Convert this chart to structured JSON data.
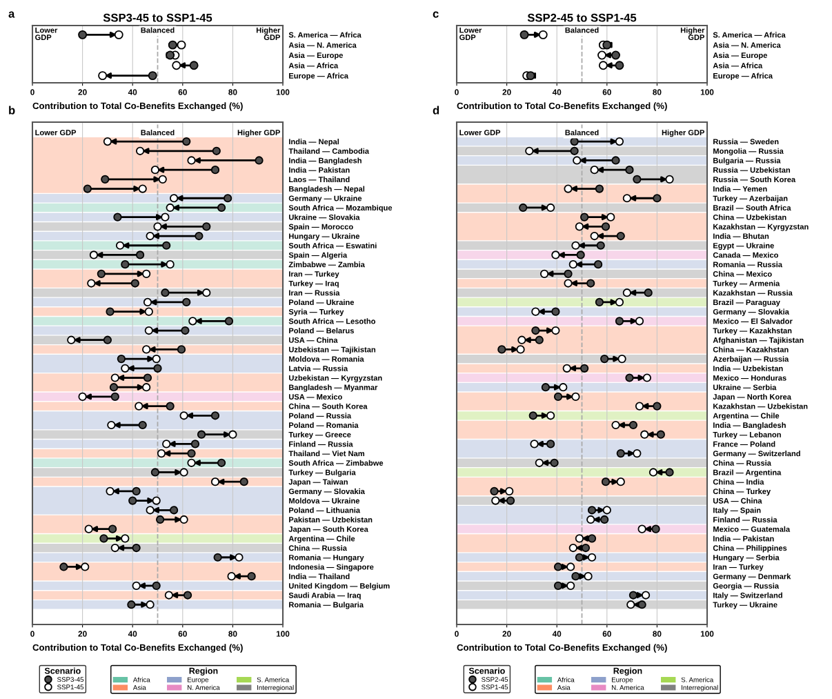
{
  "chart_data": [
    {
      "type": "scatter",
      "orientation": "horizontal",
      "title": "SSP3-45 to SSP1-45",
      "xlabel": "Contribution to Total Co-Benefits Exchanged (%)",
      "categories": [
        "S. America — Africa",
        "Asia — N. America",
        "Asia — Europe",
        "Asia — Africa",
        "Europe — Africa"
      ],
      "series": [
        {
          "color": "#4d4d4d",
          "values": [
            20,
            56,
            55,
            64.5,
            48
          ]
        },
        {
          "color": "#ffffff",
          "values": [
            34.5,
            59.5,
            57,
            57.5,
            28
          ]
        }
      ],
      "xlim": [
        0,
        100
      ],
      "xticks": [
        0,
        20,
        40,
        60,
        80,
        100
      ],
      "grid": "x",
      "marker": "circle",
      "ref_lines": [
        {
          "axis": "x",
          "value": 50,
          "label": "Balanced",
          "color": "#aaaaaa",
          "line_style": "dashed"
        }
      ],
      "annotations": [
        "a",
        "Lower\nGDP",
        "Higher\nGDP"
      ]
    },
    {
      "type": "scatter",
      "orientation": "horizontal",
      "xlabel": "Contribution to Total Co-Benefits Exchanged (%)",
      "legend_title": "Scenario",
      "legend": "bottom",
      "categories": [
        "India — Nepal",
        "Thailand — Cambodia",
        "India — Bangladesh",
        "India — Pakistan",
        "Laos — Thailand",
        "Bangladesh — Nepal",
        "Germany — Ukraine",
        "South Africa — Mozambique",
        "Ukraine — Slovakia",
        "Spain — Morocco",
        "Hungary — Ukraine",
        "South Africa — Eswatini",
        "Spain — Algeria",
        "Zimbabwe — Zambia",
        "Iran — Turkey",
        "Turkey — Iraq",
        "Iran — Russia",
        "Poland — Ukraine",
        "Syria — Turkey",
        "South Africa — Lesotho",
        "Poland — Belarus",
        "USA — China",
        "Uzbekistan — Tajikistan",
        "Moldova — Romania",
        "Latvia — Russia",
        "Uzbekistan — Kyrgyzstan",
        "Bangladesh — Myanmar",
        "USA — Mexico",
        "China — South Korea",
        "Poland — Russia",
        "Poland — Romania",
        "Turkey — Greece",
        "Finland — Russia",
        "Thailand — Viet Nam",
        "South Africa — Zimbabwe",
        "Turkey — Bulgaria",
        "Japan — Taiwan",
        "Germany — Slovakia",
        "Moldova — Ukraine",
        "Poland — Lithuania",
        "Pakistan — Uzbekistan",
        "Japan — South Korea",
        "Argentina — Chile",
        "China — Russia",
        "Romania — Hungary",
        "Indonesia — Singapore",
        "India — Thailand",
        "United Kingdom — Belgium",
        "Saudi Arabia — Iraq",
        "Romania — Bulgaria"
      ],
      "series": [
        {
          "name": "SSP3-45",
          "color": "#4d4d4d",
          "values": [
            61.5,
            73.5,
            90.5,
            73,
            29,
            22,
            78,
            75.5,
            34,
            69.5,
            66.5,
            53.5,
            43,
            37,
            27.5,
            41,
            53,
            61.5,
            31,
            78.5,
            61,
            30,
            59.5,
            35.5,
            50,
            46,
            32.5,
            33,
            55,
            73,
            44,
            67.5,
            65,
            63.5,
            75.5,
            49,
            84.5,
            41.5,
            40,
            56.5,
            51,
            32,
            28.5,
            41.5,
            74,
            12.5,
            87.5,
            49.5,
            62,
            39.5
          ]
        },
        {
          "name": "SSP1-45",
          "color": "#ffffff",
          "values": [
            30,
            43,
            63.5,
            49,
            52,
            44,
            56.5,
            55,
            53,
            50,
            47,
            35,
            24.5,
            55,
            45.5,
            23.5,
            69.5,
            46,
            46.5,
            64,
            46.5,
            15.5,
            45.5,
            49.5,
            37,
            33,
            45.5,
            20,
            42.5,
            60.5,
            31.5,
            80,
            53.5,
            51.5,
            63.5,
            60.5,
            73,
            31,
            49.5,
            47,
            60.5,
            22.5,
            37,
            33,
            82.5,
            21,
            79.5,
            41.5,
            54.5,
            47
          ]
        }
      ],
      "xlim": [
        0,
        100
      ],
      "xticks": [
        0,
        20,
        40,
        60,
        80,
        100
      ],
      "grid": "x",
      "marker": "circle",
      "ref_lines": [
        {
          "axis": "x",
          "value": 50,
          "label": "Balanced",
          "color": "#aaaaaa",
          "line_style": "dashed"
        }
      ],
      "bands": [
        {
          "axis": "y",
          "from": "South Africa — Mozambique",
          "to": "South Africa — Mozambique",
          "label": "Africa",
          "color": "#66c2a5"
        },
        {
          "axis": "y",
          "from": "South Africa — Eswatini",
          "to": "South Africa — Eswatini",
          "color": "#66c2a5"
        },
        {
          "axis": "y",
          "from": "Zimbabwe — Zambia",
          "to": "Zimbabwe — Zambia",
          "color": "#66c2a5"
        },
        {
          "axis": "y",
          "from": "South Africa — Lesotho",
          "to": "South Africa — Lesotho",
          "color": "#66c2a5"
        },
        {
          "axis": "y",
          "from": "South Africa — Zimbabwe",
          "to": "South Africa — Zimbabwe",
          "color": "#66c2a5"
        },
        {
          "axis": "y",
          "from": "India — Nepal",
          "to": "Bangladesh — Nepal",
          "label": "Asia",
          "color": "#fc8d62"
        },
        {
          "axis": "y",
          "from": "Iran — Turkey",
          "to": "Turkey — Iraq",
          "color": "#fc8d62"
        },
        {
          "axis": "y",
          "from": "Syria — Turkey",
          "to": "Syria — Turkey",
          "color": "#fc8d62"
        },
        {
          "axis": "y",
          "from": "Uzbekistan — Tajikistan",
          "to": "Uzbekistan — Tajikistan",
          "color": "#fc8d62"
        },
        {
          "axis": "y",
          "from": "Uzbekistan — Kyrgyzstan",
          "to": "Bangladesh — Myanmar",
          "color": "#fc8d62"
        },
        {
          "axis": "y",
          "from": "China — South Korea",
          "to": "China — South Korea",
          "color": "#fc8d62"
        },
        {
          "axis": "y",
          "from": "Thailand — Viet Nam",
          "to": "Thailand — Viet Nam",
          "color": "#fc8d62"
        },
        {
          "axis": "y",
          "from": "Japan — Taiwan",
          "to": "Japan — Taiwan",
          "color": "#fc8d62"
        },
        {
          "axis": "y",
          "from": "Pakistan — Uzbekistan",
          "to": "Japan — South Korea",
          "color": "#fc8d62"
        },
        {
          "axis": "y",
          "from": "Indonesia — Singapore",
          "to": "India — Thailand",
          "color": "#fc8d62"
        },
        {
          "axis": "y",
          "from": "Saudi Arabia — Iraq",
          "to": "Saudi Arabia — Iraq",
          "color": "#fc8d62"
        },
        {
          "axis": "y",
          "from": "Germany — Ukraine",
          "to": "Germany — Ukraine",
          "label": "Europe",
          "color": "#8da0cb"
        },
        {
          "axis": "y",
          "from": "Ukraine — Slovakia",
          "to": "Ukraine — Slovakia",
          "color": "#8da0cb"
        },
        {
          "axis": "y",
          "from": "Hungary — Ukraine",
          "to": "Hungary — Ukraine",
          "color": "#8da0cb"
        },
        {
          "axis": "y",
          "from": "Poland — Ukraine",
          "to": "Poland — Ukraine",
          "color": "#8da0cb"
        },
        {
          "axis": "y",
          "from": "Poland — Belarus",
          "to": "Poland — Belarus",
          "color": "#8da0cb"
        },
        {
          "axis": "y",
          "from": "Moldova — Romania",
          "to": "Latvia — Russia",
          "color": "#8da0cb"
        },
        {
          "axis": "y",
          "from": "Poland — Russia",
          "to": "Poland — Romania",
          "color": "#8da0cb"
        },
        {
          "axis": "y",
          "from": "Finland — Russia",
          "to": "Finland — Russia",
          "color": "#8da0cb"
        },
        {
          "axis": "y",
          "from": "Germany — Slovakia",
          "to": "Poland — Lithuania",
          "color": "#8da0cb"
        },
        {
          "axis": "y",
          "from": "Romania — Hungary",
          "to": "Romania — Hungary",
          "color": "#8da0cb"
        },
        {
          "axis": "y",
          "from": "United Kingdom — Belgium",
          "to": "United Kingdom — Belgium",
          "color": "#8da0cb"
        },
        {
          "axis": "y",
          "from": "Romania — Bulgaria",
          "to": "Romania — Bulgaria",
          "color": "#8da0cb"
        },
        {
          "axis": "y",
          "from": "USA — Mexico",
          "to": "USA — Mexico",
          "label": "N. America",
          "color": "#e78ac3"
        },
        {
          "axis": "y",
          "from": "Argentina — Chile",
          "to": "Argentina — Chile",
          "label": "S. America",
          "color": "#a6d854"
        },
        {
          "axis": "y",
          "from": "Spain — Morocco",
          "to": "Spain — Morocco",
          "label": "Interregional",
          "color": "#808080"
        },
        {
          "axis": "y",
          "from": "Spain — Algeria",
          "to": "Spain — Algeria",
          "color": "#808080"
        },
        {
          "axis": "y",
          "from": "Iran — Russia",
          "to": "Iran — Russia",
          "color": "#808080"
        },
        {
          "axis": "y",
          "from": "USA — China",
          "to": "USA — China",
          "color": "#808080"
        },
        {
          "axis": "y",
          "from": "Turkey — Greece",
          "to": "Turkey — Greece",
          "color": "#808080"
        },
        {
          "axis": "y",
          "from": "Turkey — Bulgaria",
          "to": "Turkey — Bulgaria",
          "color": "#808080"
        },
        {
          "axis": "y",
          "from": "China — Russia",
          "to": "China — Russia",
          "color": "#808080"
        }
      ],
      "annotations": [
        "b",
        "Lower GDP",
        "Higher GDP",
        "Region"
      ]
    },
    {
      "type": "scatter",
      "orientation": "horizontal",
      "title": "SSP2-45 to SSP1-45",
      "xlabel": "Contribution to Total Co-Benefits Exchanged (%)",
      "categories": [
        "S. America — Africa",
        "Asia — N. America",
        "Asia — Europe",
        "Asia — Africa",
        "Europe — Africa"
      ],
      "series": [
        {
          "color": "#4d4d4d",
          "values": [
            27,
            60,
            63.5,
            65,
            29.5
          ]
        },
        {
          "color": "#ffffff",
          "values": [
            34.5,
            58.5,
            58,
            58.5,
            28
          ]
        }
      ],
      "xlim": [
        0,
        100
      ],
      "xticks": [
        0,
        20,
        40,
        60,
        80,
        100
      ],
      "grid": "x",
      "marker": "circle",
      "ref_lines": [
        {
          "axis": "x",
          "value": 50,
          "label": "Balanced",
          "color": "#aaaaaa",
          "line_style": "dashed"
        }
      ],
      "annotations": [
        "c",
        "Lower\nGDP",
        "Higher\nGDP"
      ]
    },
    {
      "type": "scatter",
      "orientation": "horizontal",
      "xlabel": "Contribution to Total Co-Benefits Exchanged (%)",
      "legend_title": "Scenario",
      "legend": "bottom",
      "categories": [
        "Russia — Sweden",
        "Mongolia — Russia",
        "Bulgaria — Russia",
        "Russia — Uzbekistan",
        "Russia — South Korea",
        "India — Yemen",
        "Turkey — Azerbaijan",
        "Brazil — South Africa",
        "China — Uzbekistan",
        "Kazakhstan — Kyrgyzstan",
        "India — Bhutan",
        "Egypt — Ukraine",
        "Canada — Mexico",
        "Romania — Russia",
        "China — Mexico",
        "Turkey — Armenia",
        "Kazakhstan — Russia",
        "Brazil — Paraguay",
        "Germany — Slovakia",
        "Mexico — El Salvador",
        "Turkey — Kazakhstan",
        "Afghanistan — Tajikistan",
        "China — Kazakhstan",
        "Azerbaijan — Russia",
        "India — Uzbekistan",
        "Mexico — Honduras",
        "Ukraine — Serbia",
        "Japan — North Korea",
        "Kazakhstan — Uzbekistan",
        "Argentina — Chile",
        "India — Bangladesh",
        "Turkey — Lebanon",
        "France — Poland",
        "Germany — Switzerland",
        "China — Russia",
        "Brazil — Argentina",
        "China — India",
        "China — Turkey",
        "USA — China",
        "Italy — Spain",
        "Finland — Russia",
        "Mexico — Guatemala",
        "India — Pakistan",
        "China — Philippines",
        "Hungary — Serbia",
        "Iran — Turkey",
        "Germany — Denmark",
        "Georgia — Russia",
        "Italy — Switzerland",
        "Turkey — Ukraine"
      ],
      "series": [
        {
          "name": "SSP2-45",
          "color": "#4d4d4d",
          "values": [
            47,
            47,
            63.5,
            69,
            72,
            57,
            80,
            26.5,
            51,
            59.5,
            65.5,
            57.5,
            49.5,
            56.5,
            44.5,
            53.5,
            76.5,
            57,
            39.5,
            65,
            31.5,
            33,
            18,
            59,
            51,
            69,
            35.5,
            40.5,
            80,
            30.5,
            70.5,
            81.5,
            37.5,
            65.5,
            39,
            85,
            59.5,
            15,
            21.5,
            54,
            59,
            79.5,
            54,
            51.5,
            49,
            40.5,
            47.5,
            40.5,
            70.5,
            74
          ]
        },
        {
          "name": "SSP1-45",
          "color": "#ffffff",
          "values": [
            65,
            29,
            48,
            55,
            85,
            44.5,
            68,
            37.5,
            61.5,
            49,
            55,
            47.5,
            39.5,
            46.5,
            35,
            44.5,
            68,
            65,
            31.5,
            73,
            39.5,
            26,
            25.5,
            66,
            44,
            76,
            42.5,
            47.5,
            73,
            37.5,
            63.5,
            75,
            31,
            72,
            33,
            78.5,
            65.5,
            21,
            15.5,
            60,
            53.5,
            74,
            49,
            46.5,
            54,
            45.5,
            52.5,
            45.5,
            75.5,
            69.5
          ]
        },
        {
          "name": "Africa",
          "type": "bar",
          "color": "#66c2a5",
          "values": [
            null,
            null,
            null,
            null,
            null,
            null,
            null,
            null,
            null,
            null,
            null,
            null,
            null,
            null,
            null,
            null,
            null,
            null,
            null,
            null,
            null,
            null,
            null,
            null,
            null,
            null,
            null,
            null,
            null,
            null,
            null,
            null,
            null,
            null,
            null,
            null,
            null,
            null,
            null,
            null,
            null,
            null,
            null,
            null,
            null,
            null,
            null,
            null,
            null,
            null
          ]
        }
      ],
      "xlim": [
        0,
        100
      ],
      "xticks": [
        0,
        20,
        40,
        60,
        80,
        100
      ],
      "grid": "x",
      "marker": "circle",
      "ref_lines": [
        {
          "axis": "x",
          "value": 50,
          "label": "Balanced",
          "color": "#aaaaaa",
          "line_style": "dashed"
        }
      ],
      "bands": [
        {
          "axis": "y",
          "from": "India — Yemen",
          "to": "Turkey — Azerbaijan",
          "label": "Asia",
          "color": "#fc8d62"
        },
        {
          "axis": "y",
          "from": "China — Uzbekistan",
          "to": "India — Bhutan",
          "color": "#fc8d62"
        },
        {
          "axis": "y",
          "from": "Turkey — Armenia",
          "to": "Turkey — Armenia",
          "color": "#fc8d62"
        },
        {
          "axis": "y",
          "from": "Turkey — Kazakhstan",
          "to": "China — Kazakhstan",
          "color": "#fc8d62"
        },
        {
          "axis": "y",
          "from": "India — Uzbekistan",
          "to": "India — Uzbekistan",
          "color": "#fc8d62"
        },
        {
          "axis": "y",
          "from": "Japan — North Korea",
          "to": "Kazakhstan — Uzbekistan",
          "color": "#fc8d62"
        },
        {
          "axis": "y",
          "from": "India — Bangladesh",
          "to": "Turkey — Lebanon",
          "color": "#fc8d62"
        },
        {
          "axis": "y",
          "from": "China — India",
          "to": "China — Turkey",
          "color": "#fc8d62"
        },
        {
          "axis": "y",
          "from": "India — Pakistan",
          "to": "China — Philippines",
          "color": "#fc8d62"
        },
        {
          "axis": "y",
          "from": "Iran — Turkey",
          "to": "Iran — Turkey",
          "color": "#fc8d62"
        },
        {
          "axis": "y",
          "from": "Russia — Sweden",
          "to": "Russia — Sweden",
          "label": "Europe",
          "color": "#8da0cb"
        },
        {
          "axis": "y",
          "from": "Bulgaria — Russia",
          "to": "Bulgaria — Russia",
          "color": "#8da0cb"
        },
        {
          "axis": "y",
          "from": "Romania — Russia",
          "to": "Romania — Russia",
          "color": "#8da0cb"
        },
        {
          "axis": "y",
          "from": "Germany — Slovakia",
          "to": "Germany — Slovakia",
          "color": "#8da0cb"
        },
        {
          "axis": "y",
          "from": "Ukraine — Serbia",
          "to": "Ukraine — Serbia",
          "color": "#8da0cb"
        },
        {
          "axis": "y",
          "from": "France — Poland",
          "to": "Germany — Switzerland",
          "color": "#8da0cb"
        },
        {
          "axis": "y",
          "from": "Italy — Spain",
          "to": "Finland — Russia",
          "color": "#8da0cb"
        },
        {
          "axis": "y",
          "from": "Hungary — Serbia",
          "to": "Hungary — Serbia",
          "color": "#8da0cb"
        },
        {
          "axis": "y",
          "from": "Germany — Denmark",
          "to": "Germany — Denmark",
          "color": "#8da0cb"
        },
        {
          "axis": "y",
          "from": "Italy — Switzerland",
          "to": "Italy — Switzerland",
          "color": "#8da0cb"
        },
        {
          "axis": "y",
          "from": "Canada — Mexico",
          "to": "Canada — Mexico",
          "label": "N. America",
          "color": "#e78ac3"
        },
        {
          "axis": "y",
          "from": "Mexico — El Salvador",
          "to": "Mexico — El Salvador",
          "color": "#e78ac3"
        },
        {
          "axis": "y",
          "from": "Mexico — Honduras",
          "to": "Mexico — Honduras",
          "color": "#e78ac3"
        },
        {
          "axis": "y",
          "from": "Mexico — Guatemala",
          "to": "Mexico — Guatemala",
          "color": "#e78ac3"
        },
        {
          "axis": "y",
          "from": "Brazil — Paraguay",
          "to": "Brazil — Paraguay",
          "label": "S. America",
          "color": "#a6d854"
        },
        {
          "axis": "y",
          "from": "Argentina — Chile",
          "to": "Argentina — Chile",
          "color": "#a6d854"
        },
        {
          "axis": "y",
          "from": "Brazil — Argentina",
          "to": "Brazil — Argentina",
          "color": "#a6d854"
        },
        {
          "axis": "y",
          "from": "Mongolia — Russia",
          "to": "Mongolia — Russia",
          "label": "Interregional",
          "color": "#808080"
        },
        {
          "axis": "y",
          "from": "Russia — Uzbekistan",
          "to": "Russia — South Korea",
          "color": "#808080"
        },
        {
          "axis": "y",
          "from": "Brazil — South Africa",
          "to": "Brazil — South Africa",
          "color": "#808080"
        },
        {
          "axis": "y",
          "from": "Egypt — Ukraine",
          "to": "Egypt — Ukraine",
          "color": "#808080"
        },
        {
          "axis": "y",
          "from": "China — Mexico",
          "to": "China — Mexico",
          "color": "#808080"
        },
        {
          "axis": "y",
          "from": "Kazakhstan — Russia",
          "to": "Kazakhstan — Russia",
          "color": "#808080"
        },
        {
          "axis": "y",
          "from": "Azerbaijan — Russia",
          "to": "Azerbaijan — Russia",
          "color": "#808080"
        },
        {
          "axis": "y",
          "from": "China — Russia",
          "to": "China — Russia",
          "color": "#808080"
        },
        {
          "axis": "y",
          "from": "USA — China",
          "to": "USA — China",
          "color": "#808080"
        },
        {
          "axis": "y",
          "from": "Georgia — Russia",
          "to": "Georgia — Russia",
          "color": "#808080"
        },
        {
          "axis": "y",
          "from": "Turkey — Ukraine",
          "to": "Turkey — Ukraine",
          "color": "#808080"
        }
      ],
      "annotations": [
        "d",
        "Lower GDP",
        "Higher GDP",
        "Region"
      ]
    }
  ]
}
